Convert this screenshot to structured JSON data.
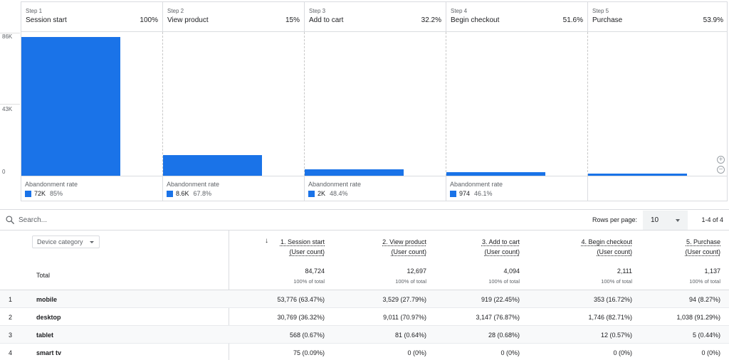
{
  "chart_data": {
    "type": "bar",
    "y_ticks": [
      "86K",
      "43K",
      "0"
    ],
    "ylim": [
      0,
      86000
    ],
    "steps": [
      {
        "step": "Step 1",
        "name": "Session start",
        "pct": "100%",
        "value": 84724,
        "abandon_label": "Abandonment rate",
        "abandon_count": "72K",
        "abandon_rate": "85%"
      },
      {
        "step": "Step 2",
        "name": "View product",
        "pct": "15%",
        "value": 12697,
        "abandon_label": "Abandonment rate",
        "abandon_count": "8.6K",
        "abandon_rate": "67.8%"
      },
      {
        "step": "Step 3",
        "name": "Add to cart",
        "pct": "32.2%",
        "value": 4094,
        "abandon_label": "Abandonment rate",
        "abandon_count": "2K",
        "abandon_rate": "48.4%"
      },
      {
        "step": "Step 4",
        "name": "Begin checkout",
        "pct": "51.6%",
        "value": 2111,
        "abandon_label": "Abandonment rate",
        "abandon_count": "974",
        "abandon_rate": "46.1%"
      },
      {
        "step": "Step 5",
        "name": "Purchase",
        "pct": "53.9%",
        "value": 1137,
        "abandon_label": "",
        "abandon_count": "",
        "abandon_rate": ""
      }
    ],
    "bar_color": "#1a73e8"
  },
  "toolbar": {
    "search_placeholder": "Search...",
    "rows_per_page_label": "Rows per page:",
    "rows_per_page_value": "10",
    "range_label": "1-4 of 4"
  },
  "table": {
    "dimension_label": "Device category",
    "total_label": "Total",
    "columns": [
      {
        "line1": "1. Session start",
        "line2": "(User count)",
        "total": "84,724",
        "total_sub": "100% of total"
      },
      {
        "line1": "2. View product",
        "line2": "(User count)",
        "total": "12,697",
        "total_sub": "100% of total"
      },
      {
        "line1": "3. Add to cart",
        "line2": "(User count)",
        "total": "4,094",
        "total_sub": "100% of total"
      },
      {
        "line1": "4. Begin checkout",
        "line2": "(User count)",
        "total": "2,111",
        "total_sub": "100% of total"
      },
      {
        "line1": "5. Purchase",
        "line2": "(User count)",
        "total": "1,137",
        "total_sub": "100% of total"
      }
    ],
    "rows": [
      {
        "idx": "1",
        "dim": "mobile",
        "cells": [
          "53,776 (63.47%)",
          "3,529 (27.79%)",
          "919 (22.45%)",
          "353 (16.72%)",
          "94 (8.27%)"
        ]
      },
      {
        "idx": "2",
        "dim": "desktop",
        "cells": [
          "30,769 (36.32%)",
          "9,011 (70.97%)",
          "3,147 (76.87%)",
          "1,746 (82.71%)",
          "1,038 (91.29%)"
        ]
      },
      {
        "idx": "3",
        "dim": "tablet",
        "cells": [
          "568 (0.67%)",
          "81 (0.64%)",
          "28 (0.68%)",
          "12 (0.57%)",
          "5 (0.44%)"
        ]
      },
      {
        "idx": "4",
        "dim": "smart tv",
        "cells": [
          "75 (0.09%)",
          "0 (0%)",
          "0 (0%)",
          "0 (0%)",
          "0 (0%)"
        ]
      }
    ]
  },
  "icons": {
    "search": "search-icon",
    "zoom_in": "zoom-in-icon",
    "zoom_out": "zoom-out-icon",
    "sort": "arrow-down-icon"
  }
}
